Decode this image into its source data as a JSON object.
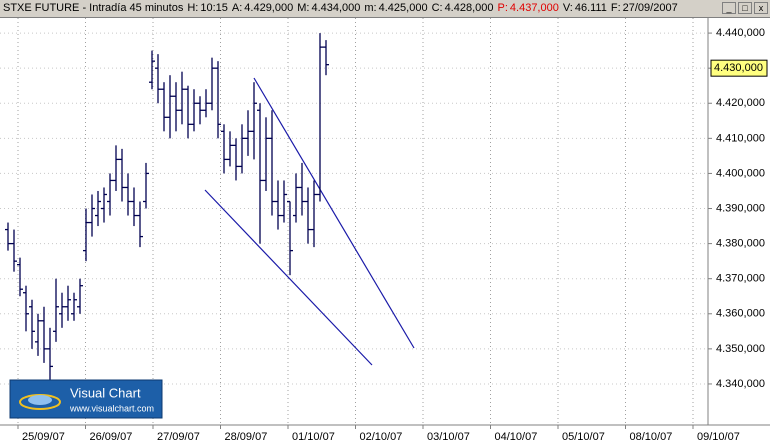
{
  "chart_data": {
    "type": "ohlc",
    "header": {
      "title": "STXE FUTURE - Intradía 45 minutos",
      "fields": [
        {
          "label": "H:",
          "value": "10:15"
        },
        {
          "label": "A:",
          "value": "4.429,000"
        },
        {
          "label": "M:",
          "value": "4.434,000"
        },
        {
          "label": "m:",
          "value": "4.425,000"
        },
        {
          "label": "C:",
          "value": "4.428,000"
        },
        {
          "label": "P:",
          "value": "4.437,000",
          "color": "#e00000"
        },
        {
          "label": "V:",
          "value": "46.111"
        },
        {
          "label": "F:",
          "value": "27/09/2007"
        }
      ]
    },
    "logo": {
      "title": "Visual Chart",
      "url": "www.visualchart.com"
    },
    "categories": [
      "25/09/07",
      "26/09/07",
      "27/09/07",
      "28/09/07",
      "01/10/07",
      "02/10/07",
      "03/10/07",
      "04/10/07",
      "05/10/07",
      "08/10/07",
      "09/10/07"
    ],
    "color": "#000050",
    "open": [
      4.384,
      4.38,
      4.374,
      4.366,
      4.362,
      4.352,
      4.358,
      4.35,
      4.355,
      4.36,
      4.362,
      4.36,
      4.362,
      4.378,
      4.386,
      4.388,
      4.39,
      4.392,
      4.398,
      4.404,
      4.396,
      4.392,
      4.388,
      4.392,
      4.426,
      4.43,
      4.424,
      4.416,
      4.422,
      4.418,
      4.424,
      4.414,
      4.42,
      4.418,
      4.42,
      4.43,
      4.412,
      4.404,
      4.408,
      4.402,
      4.41,
      4.412,
      4.418,
      4.398,
      4.41,
      4.392,
      4.388,
      4.392,
      4.388,
      4.396,
      4.392,
      4.384,
      4.394,
      4.436
    ],
    "high": [
      4.386,
      4.384,
      4.376,
      4.368,
      4.364,
      4.36,
      4.362,
      4.356,
      4.37,
      4.366,
      4.368,
      4.366,
      4.37,
      4.39,
      4.394,
      4.395,
      4.396,
      4.4,
      4.408,
      4.407,
      4.4,
      4.396,
      4.392,
      4.403,
      4.435,
      4.434,
      4.426,
      4.428,
      4.426,
      4.429,
      4.425,
      4.424,
      4.422,
      4.424,
      4.433,
      4.432,
      4.414,
      4.412,
      4.41,
      4.414,
      4.418,
      4.426,
      4.42,
      4.416,
      4.418,
      4.398,
      4.398,
      4.392,
      4.4,
      4.403,
      4.396,
      4.398,
      4.44,
      4.438
    ],
    "low": [
      4.378,
      4.372,
      4.365,
      4.355,
      4.35,
      4.348,
      4.346,
      4.34,
      4.352,
      4.356,
      4.358,
      4.358,
      4.36,
      4.375,
      4.382,
      4.385,
      4.386,
      4.388,
      4.395,
      4.392,
      4.388,
      4.385,
      4.379,
      4.39,
      4.424,
      4.42,
      4.412,
      4.41,
      4.412,
      4.414,
      4.41,
      4.412,
      4.414,
      4.416,
      4.418,
      4.41,
      4.4,
      4.402,
      4.398,
      4.4,
      4.405,
      4.404,
      4.38,
      4.395,
      4.388,
      4.384,
      4.386,
      4.371,
      4.386,
      4.388,
      4.38,
      4.379,
      4.392,
      4.428
    ],
    "close": [
      4.38,
      4.375,
      4.367,
      4.36,
      4.355,
      4.358,
      4.35,
      4.345,
      4.362,
      4.362,
      4.364,
      4.364,
      4.368,
      4.386,
      4.39,
      4.392,
      4.394,
      4.398,
      4.404,
      4.396,
      4.392,
      4.388,
      4.382,
      4.4,
      4.432,
      4.424,
      4.416,
      4.422,
      4.418,
      4.424,
      4.414,
      4.42,
      4.418,
      4.42,
      4.43,
      4.414,
      4.404,
      4.408,
      4.402,
      4.41,
      4.412,
      4.42,
      4.398,
      4.41,
      4.392,
      4.388,
      4.394,
      4.378,
      4.396,
      4.392,
      4.384,
      4.394,
      4.436,
      4.431
    ],
    "ylim": [
      4.3283,
      4.4443
    ],
    "yticks": [
      {
        "value": 4.34,
        "label": "4.340,000"
      },
      {
        "value": 4.35,
        "label": "4.350,000"
      },
      {
        "value": 4.36,
        "label": "4.360,000"
      },
      {
        "value": 4.37,
        "label": "4.370,000"
      },
      {
        "value": 4.38,
        "label": "4.380,000"
      },
      {
        "value": 4.39,
        "label": "4.390,000"
      },
      {
        "value": 4.4,
        "label": "4.400,000"
      },
      {
        "value": 4.41,
        "label": "4.410,000"
      },
      {
        "value": 4.42,
        "label": "4.420,000"
      },
      {
        "value": 4.43,
        "label": "4.430,000"
      },
      {
        "value": 4.44,
        "label": "4.440,000"
      }
    ],
    "last_price": {
      "value": 4.43,
      "label": "4.430,000"
    },
    "grid": true
  }
}
